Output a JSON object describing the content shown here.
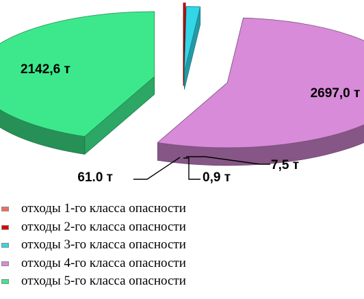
{
  "chart_data": {
    "type": "pie",
    "title": "",
    "slices": [
      {
        "label": "отходы 1-го класса опасности",
        "value": 0.9,
        "value_text": "0,9 т",
        "color": "#f26d5b"
      },
      {
        "label": "отходы 2-го класса опасности",
        "value": 7.5,
        "value_text": "7,5 т",
        "color": "#e00000"
      },
      {
        "label": "отходы 3-го класса опасности",
        "value": 61.0,
        "value_text": "61.0 т",
        "color": "#33d6e6"
      },
      {
        "label": "отходы 4-го класса опасности",
        "value": 2697.0,
        "value_text": "2697,0 т",
        "color": "#d88bd8"
      },
      {
        "label": "отходы 5-го класса опасности",
        "value": 2142.6,
        "value_text": "2142,6 т",
        "color": "#3de88c"
      }
    ],
    "legend_position": "bottom-left",
    "exploded": true,
    "three_d": true
  }
}
